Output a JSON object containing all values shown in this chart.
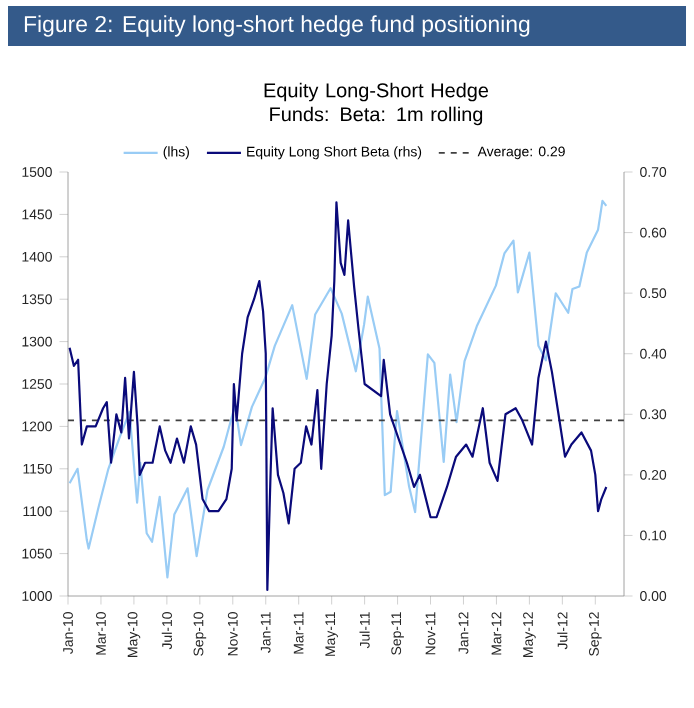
{
  "chart_data": {
    "type": "line",
    "title": "Figure 2: Equity long-short hedge fund positioning",
    "subtitle": "Equity Long-Short Hedge Funds: Beta: 1m rolling",
    "x": [
      "2010-01-04",
      "2010-01-19",
      "2010-02-05",
      "2010-02-08",
      "2010-02-25",
      "2010-03-15",
      "2010-04-05",
      "2010-04-23",
      "2010-05-07",
      "2010-05-13",
      "2010-05-25",
      "2010-06-04",
      "2010-06-18",
      "2010-07-02",
      "2010-07-15",
      "2010-08-09",
      "2010-08-26",
      "2010-09-15",
      "2010-10-15",
      "2010-11-05",
      "2010-11-16",
      "2010-12-06",
      "2010-12-31",
      "2011-01-18",
      "2011-02-18",
      "2011-03-16",
      "2011-04-01",
      "2011-04-29",
      "2011-05-20",
      "2011-06-15",
      "2011-06-30",
      "2011-07-07",
      "2011-07-29",
      "2011-08-08",
      "2011-08-19",
      "2011-08-31",
      "2011-09-22",
      "2011-10-03",
      "2011-10-27",
      "2011-11-08",
      "2011-11-25",
      "2011-12-07",
      "2011-12-19",
      "2012-01-03",
      "2012-01-26",
      "2012-02-29",
      "2012-03-16",
      "2012-04-02",
      "2012-04-10",
      "2012-05-01",
      "2012-05-18",
      "2012-06-01",
      "2012-06-19",
      "2012-07-12",
      "2012-07-20",
      "2012-08-02",
      "2012-08-16",
      "2012-09-06",
      "2012-09-14",
      "2012-09-21"
    ],
    "series": [
      {
        "name": "(lhs)",
        "color": "#99ccf5",
        "values": [
          1133,
          1150,
          1066,
          1056,
          1105,
          1150,
          1187,
          1217,
          1110,
          1157,
          1074,
          1064,
          1117,
          1022,
          1096,
          1127,
          1047,
          1125,
          1176,
          1225,
          1178,
          1223,
          1257,
          1295,
          1343,
          1256,
          1332,
          1363,
          1333,
          1265,
          1320,
          1353,
          1292,
          1119,
          1123,
          1218,
          1129,
          1099,
          1285,
          1275,
          1158,
          1261,
          1205,
          1277,
          1318,
          1366,
          1404,
          1419,
          1358,
          1405,
          1295,
          1278,
          1357,
          1334,
          1362,
          1365,
          1405,
          1432,
          1466,
          1460
        ]
      },
      {
        "name": "Equity Long Short Beta (rhs)",
        "color": "#0a0a7a",
        "axis": "y2",
        "x": [
          "2010-01-04",
          "2010-01-12",
          "2010-01-20",
          "2010-01-27",
          "2010-02-05",
          "2010-02-20",
          "2010-03-05",
          "2010-03-12",
          "2010-03-20",
          "2010-03-30",
          "2010-04-08",
          "2010-04-15",
          "2010-04-22",
          "2010-05-01",
          "2010-05-08",
          "2010-05-12",
          "2010-05-22",
          "2010-06-05",
          "2010-06-18",
          "2010-06-28",
          "2010-07-08",
          "2010-07-20",
          "2010-08-02",
          "2010-08-15",
          "2010-08-25",
          "2010-09-06",
          "2010-09-18",
          "2010-10-05",
          "2010-10-20",
          "2010-10-30",
          "2010-11-03",
          "2010-11-08",
          "2010-11-18",
          "2010-11-28",
          "2010-12-10",
          "2010-12-20",
          "2010-12-27",
          "2011-01-01",
          "2011-01-04",
          "2011-01-10",
          "2011-01-14",
          "2011-01-24",
          "2011-02-03",
          "2011-02-12",
          "2011-02-22",
          "2011-03-05",
          "2011-03-15",
          "2011-03-25",
          "2011-04-05",
          "2011-04-12",
          "2011-04-22",
          "2011-05-01",
          "2011-05-06",
          "2011-05-10",
          "2011-05-18",
          "2011-05-25",
          "2011-06-01",
          "2011-06-12",
          "2011-06-20",
          "2011-07-01",
          "2011-08-01",
          "2011-08-06",
          "2011-08-18",
          "2011-09-18",
          "2011-10-01",
          "2011-10-12",
          "2011-11-01",
          "2011-11-12",
          "2011-12-01",
          "2011-12-18",
          "2012-01-06",
          "2012-01-18",
          "2012-02-06",
          "2012-02-18",
          "2012-03-03",
          "2012-03-18",
          "2012-04-06",
          "2012-04-18",
          "2012-05-06",
          "2012-05-18",
          "2012-06-01",
          "2012-06-12",
          "2012-06-24",
          "2012-07-06",
          "2012-07-18",
          "2012-08-06",
          "2012-08-24",
          "2012-09-01",
          "2012-09-06",
          "2012-09-12",
          "2012-09-21"
        ],
        "values": [
          0.41,
          0.38,
          0.39,
          0.25,
          0.28,
          0.28,
          0.31,
          0.32,
          0.22,
          0.3,
          0.27,
          0.36,
          0.26,
          0.37,
          0.28,
          0.2,
          0.22,
          0.22,
          0.28,
          0.24,
          0.22,
          0.26,
          0.22,
          0.28,
          0.25,
          0.16,
          0.14,
          0.14,
          0.16,
          0.21,
          0.35,
          0.29,
          0.4,
          0.46,
          0.49,
          0.52,
          0.47,
          0.4,
          0.01,
          0.2,
          0.31,
          0.2,
          0.17,
          0.12,
          0.21,
          0.22,
          0.28,
          0.25,
          0.34,
          0.21,
          0.35,
          0.43,
          0.52,
          0.65,
          0.55,
          0.53,
          0.62,
          0.51,
          0.44,
          0.35,
          0.33,
          0.39,
          0.3,
          0.22,
          0.18,
          0.2,
          0.13,
          0.13,
          0.18,
          0.23,
          0.25,
          0.23,
          0.31,
          0.22,
          0.19,
          0.3,
          0.31,
          0.29,
          0.25,
          0.36,
          0.42,
          0.37,
          0.3,
          0.23,
          0.25,
          0.27,
          0.24,
          0.2,
          0.14,
          0.16,
          0.18
        ]
      }
    ],
    "ref_lines": [
      {
        "axis": "y2",
        "value": 0.29,
        "label": "Average: 0.29",
        "color": "#404040",
        "line_style": "dashed"
      }
    ],
    "xlim": [
      "2010-01-01",
      "2012-10-24"
    ],
    "xticks": [
      {
        "value": "2010-01-01",
        "label": "Jan-10"
      },
      {
        "value": "2010-03-01",
        "label": "Mar-10"
      },
      {
        "value": "2010-05-01",
        "label": "May-10"
      },
      {
        "value": "2010-07-01",
        "label": "Jul-10"
      },
      {
        "value": "2010-09-01",
        "label": "Sep-10"
      },
      {
        "value": "2010-11-01",
        "label": "Nov-10"
      },
      {
        "value": "2011-01-01",
        "label": "Jan-11"
      },
      {
        "value": "2011-03-01",
        "label": "Mar-11"
      },
      {
        "value": "2011-05-01",
        "label": "May-11"
      },
      {
        "value": "2011-07-01",
        "label": "Jul-11"
      },
      {
        "value": "2011-09-01",
        "label": "Sep-11"
      },
      {
        "value": "2011-11-01",
        "label": "Nov-11"
      },
      {
        "value": "2012-01-01",
        "label": "Jan-12"
      },
      {
        "value": "2012-03-01",
        "label": "Mar-12"
      },
      {
        "value": "2012-05-01",
        "label": "May-12"
      },
      {
        "value": "2012-07-01",
        "label": "Jul-12"
      },
      {
        "value": "2012-09-01",
        "label": "Sep-12"
      }
    ],
    "ylim": [
      1000,
      1500
    ],
    "yticks": [
      1000,
      1050,
      1100,
      1150,
      1200,
      1250,
      1300,
      1350,
      1400,
      1450,
      1500
    ],
    "y2lim": [
      0,
      0.7
    ],
    "y2ticks": [
      {
        "value": 0,
        "label": "0.00"
      },
      {
        "value": 0.1,
        "label": "0.10"
      },
      {
        "value": 0.2,
        "label": "0.20"
      },
      {
        "value": 0.3,
        "label": "0.30"
      },
      {
        "value": 0.4,
        "label": "0.40"
      },
      {
        "value": 0.5,
        "label": "0.50"
      },
      {
        "value": 0.6,
        "label": "0.60"
      },
      {
        "value": 0.7,
        "label": "0.70"
      }
    ],
    "legend": "top",
    "grid": false,
    "marker": "none",
    "line_style": "solid"
  }
}
